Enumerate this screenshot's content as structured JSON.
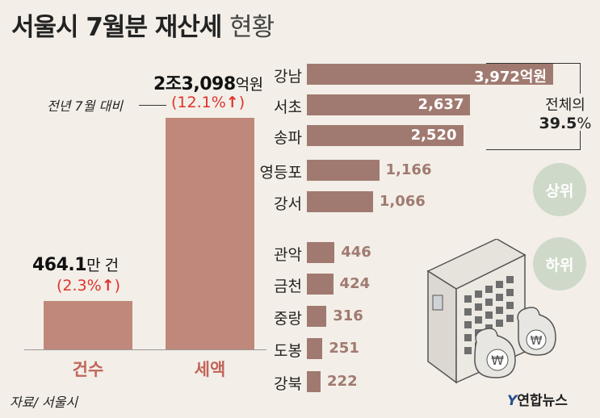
{
  "header": {
    "title_main": "서울시 7월분 재산세",
    "title_sub": "현황"
  },
  "left_chart": {
    "note": "전년 7월 대비"
  },
  "right_chart": {
    "summary_line1": "전체의",
    "summary_line2": "39.5",
    "summary_unit": "%",
    "badge_top": "상위",
    "badge_bottom": "하위"
  },
  "chart_data": [
    {
      "type": "bar",
      "categories": [
        "건수",
        "세액"
      ],
      "values": [
        464.1,
        23098
      ],
      "value_labels": [
        {
          "value": "464.1",
          "unit": "만 건",
          "change": "(2.3%",
          "arrow": "↑",
          "close": ")"
        },
        {
          "value": "2조3,098",
          "unit": "억원",
          "change": "(12.1%",
          "arrow": "↑",
          "close": ")"
        }
      ]
    },
    {
      "type": "bar",
      "orientation": "horizontal",
      "unit": "억원",
      "categories": [
        "강남",
        "서초",
        "송파",
        "영등포",
        "강서",
        "관악",
        "금천",
        "중랑",
        "도봉",
        "강북"
      ],
      "values": [
        3972,
        2637,
        2520,
        1166,
        1066,
        446,
        424,
        316,
        251,
        222
      ],
      "value_labels": [
        "3,972억원",
        "2,637",
        "2,520",
        "1,166",
        "1,066",
        "446",
        "424",
        "316",
        "251",
        "222"
      ]
    }
  ],
  "footer": {
    "source": "자료/ 서울시",
    "logo_mark": "Y",
    "logo_text": "연합뉴스"
  },
  "colors": {
    "background": "#f3efe8",
    "left_bar": "#c0887a",
    "right_bar": "#a07a70",
    "increase": "#e0322c",
    "badge": "#cfd9c9"
  }
}
